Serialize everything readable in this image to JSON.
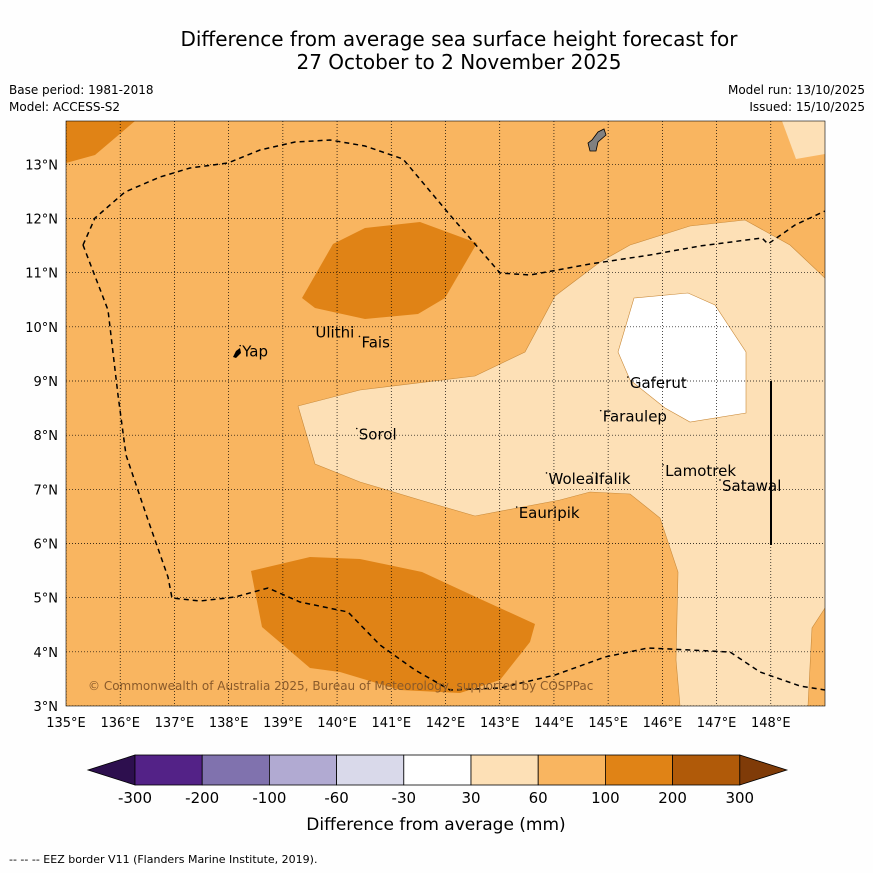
{
  "title": {
    "line1": "Difference from average sea surface height forecast for",
    "line2": "27 October to 2 November 2025"
  },
  "meta": {
    "base_period": "Base period: 1981-2018",
    "model": "Model: ACCESS-S2",
    "model_run": "Model run: 13/10/2025",
    "issued": "Issued: 15/10/2025"
  },
  "map": {
    "lon_range": [
      135,
      149
    ],
    "lat_range": [
      3,
      13.8
    ],
    "lon_ticks": [
      "135°E",
      "136°E",
      "137°E",
      "138°E",
      "139°E",
      "140°E",
      "141°E",
      "142°E",
      "143°E",
      "144°E",
      "145°E",
      "146°E",
      "147°E",
      "148°E"
    ],
    "lat_ticks": [
      "3°N",
      "4°N",
      "5°N",
      "6°N",
      "7°N",
      "8°N",
      "9°N",
      "10°N",
      "11°N",
      "12°N",
      "13°N"
    ],
    "places": [
      {
        "name": "Yap",
        "lon": 138.25,
        "lat": 9.45
      },
      {
        "name": "Ulithi",
        "lon": 139.6,
        "lat": 9.8
      },
      {
        "name": "Fais",
        "lon": 140.45,
        "lat": 9.62
      },
      {
        "name": "Gaferut",
        "lon": 145.4,
        "lat": 8.87
      },
      {
        "name": "Faraulep",
        "lon": 144.9,
        "lat": 8.25
      },
      {
        "name": "Sorol",
        "lon": 140.4,
        "lat": 7.92
      },
      {
        "name": "Lamotrek",
        "lon": 146.05,
        "lat": 7.25
      },
      {
        "name": "Woleai",
        "lon": 143.9,
        "lat": 7.1
      },
      {
        "name": "Ifalik",
        "lon": 144.75,
        "lat": 7.1
      },
      {
        "name": "Satawal",
        "lon": 147.1,
        "lat": 6.97
      },
      {
        "name": "Eauripik",
        "lon": 143.35,
        "lat": 6.47
      }
    ],
    "copyright": "© Commonwealth of Australia 2025, Bureau of Meteorology, supported by COSPPac"
  },
  "colorbar": {
    "labels": [
      "-300",
      "-200",
      "-100",
      "-60",
      "-30",
      "30",
      "60",
      "100",
      "200",
      "300"
    ],
    "colors": [
      "#2d0f4e",
      "#532287",
      "#8072ae",
      "#b1aad2",
      "#d9d9ea",
      "#ffffff",
      "#fde0b6",
      "#f9b560",
      "#e08316",
      "#b05a09",
      "#7f3b08"
    ],
    "title": "Difference from average (mm)"
  },
  "footnote": "--  --  -- EEZ border V11 (Flanders Marine Institute, 2019).",
  "chart_data": {
    "type": "heatmap",
    "title": "Difference from average sea surface height forecast for 27 October to 2 November 2025",
    "xlabel": "Longitude",
    "ylabel": "Latitude",
    "units": "mm",
    "levels": [
      -300,
      -200,
      -100,
      -60,
      -30,
      30,
      60,
      100,
      200,
      300
    ],
    "dominant_category": "60 to 100 mm",
    "regions": [
      {
        "range": "100 to 200 mm",
        "area": "north-west corner near 135°E 13.5°N"
      },
      {
        "range": "100 to 200 mm",
        "area": "around 141-142°E, 10-11.5°N"
      },
      {
        "range": "100 to 200 mm",
        "area": "around 138.5-143.5°E, 3.5-5.7°N"
      },
      {
        "range": "30 to 60 mm",
        "area": "central and eastern band 139.5-149°E, 6-11.8°N"
      },
      {
        "range": "-30 to 30 mm",
        "area": "patch around 145.3-147.3°E, 8.3-10.6°N"
      },
      {
        "range": "30 to 60 mm",
        "area": "south-east 146-149°E, 3-6°N"
      }
    ]
  }
}
